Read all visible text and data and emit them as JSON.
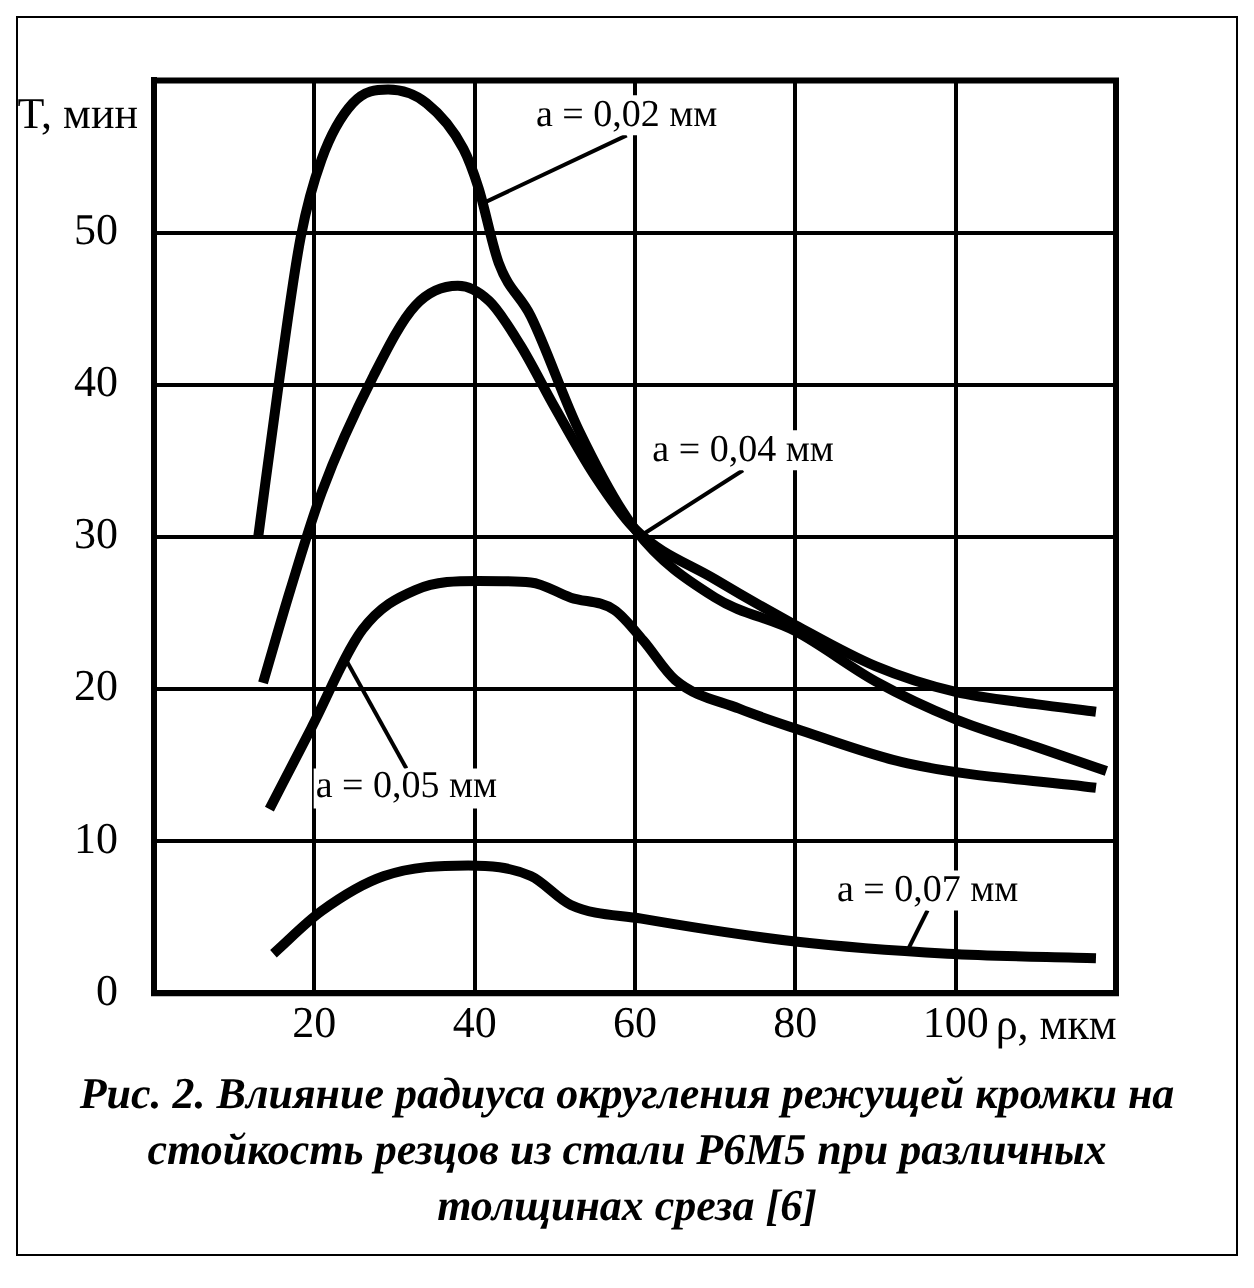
{
  "chart_data": {
    "type": "line",
    "xlabel": "ρ, мкм",
    "ylabel": "T, мин",
    "xlim": [
      0,
      120
    ],
    "ylim": [
      0,
      60
    ],
    "xticks": [
      20,
      40,
      60,
      80,
      100
    ],
    "yticks": [
      0,
      10,
      20,
      30,
      40,
      50
    ],
    "grid": true,
    "legend": false,
    "marker": "none",
    "line_style": "solid",
    "annotations": [
      "Рис. 2. Влияние радиуса округления режущей кромки на стойкость резцов из стали Р6М5 при различных толщинах среза [6]"
    ],
    "series": [
      {
        "name": "a = 0,02 мм",
        "color": "#000000",
        "x": [
          13,
          15.7,
          18.3,
          20.9,
          24.8,
          29.2,
          34,
          38.6,
          40.5,
          43,
          47,
          53,
          60,
          70,
          80,
          90,
          100,
          110,
          118.8
        ],
        "values": [
          30,
          40.6,
          49.7,
          54.8,
          58.5,
          59.4,
          58.5,
          55.5,
          52.9,
          48,
          44.5,
          37,
          30.5,
          26,
          23.8,
          20.5,
          18,
          16.2,
          14.6
        ]
      },
      {
        "name": "a = 0,04 мм",
        "color": "#000000",
        "x": [
          13.6,
          17,
          20.9,
          27.4,
          32.6,
          37.9,
          41.8,
          45.7,
          50,
          55,
          60,
          70,
          80,
          90,
          100,
          110,
          117.5
        ],
        "values": [
          20.4,
          26.5,
          32.9,
          40.6,
          45.2,
          46.5,
          45.5,
          42.6,
          38.5,
          34,
          30.5,
          27.2,
          24.2,
          21.5,
          19.8,
          19,
          18.5
        ]
      },
      {
        "name": "a = 0,05 мм",
        "color": "#000000",
        "x": [
          14.4,
          19.6,
          26,
          32.6,
          40.5,
          47,
          52,
          57.4,
          61,
          65,
          73,
          80,
          94,
          117.5
        ],
        "values": [
          12.1,
          17.4,
          23.9,
          26.5,
          27.1,
          27,
          26,
          25.2,
          23.2,
          20.6,
          18.7,
          17.4,
          15.1,
          13.5
        ]
      },
      {
        "name": "a = 0,07 мм",
        "color": "#000000",
        "x": [
          14.9,
          20.9,
          28.7,
          39.2,
          47,
          52,
          60.8,
          80,
          99,
          117.5
        ],
        "values": [
          2.6,
          5.4,
          7.7,
          8.4,
          7.7,
          5.8,
          4.9,
          3.4,
          2.6,
          2.3
        ]
      }
    ]
  }
}
